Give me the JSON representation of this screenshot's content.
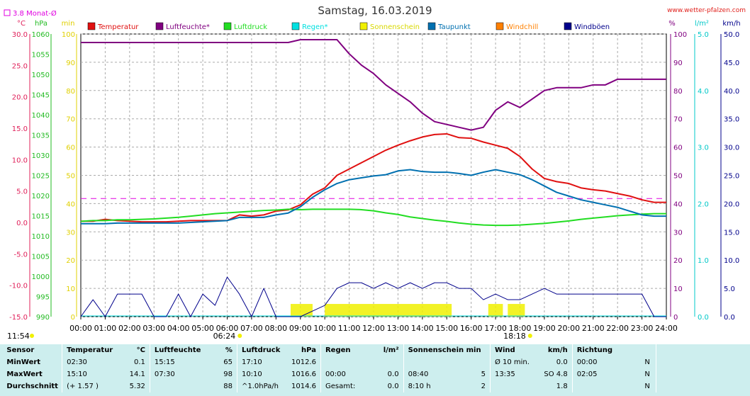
{
  "header": {
    "title": "Samstag, 16.03.2019",
    "site": "www.wetter-pfalzen.com"
  },
  "chart_data": {
    "type": "line",
    "x_hours": [
      0,
      0.5,
      1,
      1.5,
      2,
      2.5,
      3,
      3.5,
      4,
      4.5,
      5,
      5.5,
      6,
      6.5,
      7,
      7.5,
      8,
      8.5,
      9,
      9.5,
      10,
      10.5,
      11,
      11.5,
      12,
      12.5,
      13,
      13.5,
      14,
      14.5,
      15,
      15.5,
      16,
      16.5,
      17,
      17.5,
      18,
      18.5,
      19,
      19.5,
      20,
      20.5,
      21,
      21.5,
      22,
      22.5,
      23,
      23.5,
      24
    ],
    "x_tick_labels": [
      "00:00",
      "01:00",
      "02:00",
      "03:00",
      "04:00",
      "05:00",
      "06:00",
      "07:00",
      "08:00",
      "09:00",
      "10:00",
      "11:00",
      "12:00",
      "13:00",
      "14:00",
      "15:00",
      "16:00",
      "17:00",
      "18:00",
      "19:00",
      "20:00",
      "21:00",
      "22:00",
      "23:00",
      "24:00"
    ],
    "legend": [
      {
        "name": "Temperatur",
        "color": "#e01010"
      },
      {
        "name": "Luftfeuchte*",
        "color": "#800080"
      },
      {
        "name": "Luftdruck",
        "color": "#22dd22"
      },
      {
        "name": "Regen*",
        "color": "#00e0e0"
      },
      {
        "name": "Sonnenschein",
        "color": "#f0f000"
      },
      {
        "name": "Taupunkt",
        "color": "#0070b0"
      },
      {
        "name": "Windchill",
        "color": "#ff8000"
      },
      {
        "name": "Windböen",
        "color": "#00008b"
      }
    ],
    "axes": {
      "temp": {
        "unit": "°C",
        "min": -15,
        "max": 30,
        "ticks": [
          "30.0",
          "25.0",
          "20.0",
          "15.0",
          "10.0",
          "5.0",
          "0.0",
          "-5.0",
          "-10.0",
          "-15.0"
        ],
        "color": "#e0205a"
      },
      "pressure": {
        "unit": "hPa",
        "min": 990,
        "max": 1060,
        "ticks": [
          "1060",
          "1055",
          "1050",
          "1045",
          "1040",
          "1035",
          "1030",
          "1025",
          "1020",
          "1015",
          "1010",
          "1005",
          "1000",
          "995",
          "990"
        ],
        "color": "#22bb22"
      },
      "sun_min": {
        "unit": "min",
        "min": 0,
        "max": 100,
        "ticks": [
          "100",
          "90",
          "80",
          "70",
          "60",
          "50",
          "40",
          "30",
          "20",
          "10",
          "0"
        ],
        "color": "#e0d000"
      },
      "humidity": {
        "unit": "%",
        "min": 0,
        "max": 100,
        "ticks": [
          "100",
          "90",
          "80",
          "70",
          "60",
          "50",
          "40",
          "30",
          "20",
          "10",
          "0"
        ],
        "color": "#800080"
      },
      "rain": {
        "unit": "l/m²",
        "min": 0,
        "max": 5,
        "ticks": [
          "5.0",
          "4.0",
          "3.0",
          "2.0",
          "1.0",
          "0.0"
        ],
        "color": "#00c8c8"
      },
      "wind": {
        "unit": "km/h",
        "min": 0,
        "max": 50,
        "ticks": [
          "50.0",
          "45.0",
          "40.0",
          "35.0",
          "30.0",
          "25.0",
          "20.0",
          "15.0",
          "10.0",
          "5.0",
          "0.0"
        ],
        "color": "#00008b"
      }
    },
    "monthly_avg": {
      "label": "3.8 Monat-Ø",
      "value": 3.8,
      "color": "#e000e0"
    },
    "sunrise": "06:24",
    "sunset": "18:18",
    "day_length": "11:54",
    "series": [
      {
        "name": "Temperatur",
        "axis": "temp",
        "color": "#e01010",
        "values": [
          0.2,
          0.2,
          0.5,
          0.3,
          0.2,
          0.1,
          0.1,
          0.1,
          0.2,
          0.3,
          0.3,
          0.3,
          0.3,
          1.2,
          1.0,
          1.2,
          1.8,
          2.0,
          2.8,
          4.5,
          5.5,
          7.5,
          8.5,
          9.5,
          10.5,
          11.5,
          12.3,
          13.0,
          13.6,
          14.0,
          14.1,
          13.5,
          13.4,
          12.8,
          12.3,
          11.8,
          10.5,
          8.5,
          7.0,
          6.5,
          6.2,
          5.5,
          5.2,
          5.0,
          4.6,
          4.2,
          3.6,
          3.2,
          3.2
        ]
      },
      {
        "name": "Luftfeuchte*",
        "axis": "humidity",
        "color": "#800080",
        "values": [
          97,
          97,
          97,
          97,
          97,
          97,
          97,
          97,
          97,
          97,
          97,
          97,
          97,
          97,
          97,
          97,
          97,
          97,
          98,
          98,
          98,
          98,
          93,
          89,
          86,
          82,
          79,
          76,
          72,
          69,
          68,
          67,
          66,
          67,
          73,
          76,
          74,
          77,
          80,
          81,
          81,
          81,
          82,
          82,
          84,
          84,
          84,
          84,
          84
        ]
      },
      {
        "name": "Luftdruck",
        "axis": "pressure",
        "color": "#22dd22",
        "values": [
          1013.6,
          1013.8,
          1013.8,
          1014.0,
          1014.0,
          1014.1,
          1014.2,
          1014.4,
          1014.6,
          1014.9,
          1015.2,
          1015.5,
          1015.7,
          1015.9,
          1016.1,
          1016.3,
          1016.4,
          1016.6,
          1016.5,
          1016.6,
          1016.6,
          1016.6,
          1016.6,
          1016.5,
          1016.2,
          1015.7,
          1015.3,
          1014.7,
          1014.3,
          1013.9,
          1013.6,
          1013.2,
          1012.9,
          1012.7,
          1012.6,
          1012.6,
          1012.7,
          1012.9,
          1013.1,
          1013.4,
          1013.7,
          1014.1,
          1014.4,
          1014.7,
          1015.0,
          1015.2,
          1015.4,
          1015.5,
          1015.5
        ]
      },
      {
        "name": "Taupunkt",
        "axis": "temp",
        "color": "#0070b0",
        "values": [
          -0.2,
          -0.2,
          -0.2,
          -0.1,
          -0.1,
          -0.1,
          -0.1,
          -0.1,
          -0.1,
          0.0,
          0.1,
          0.2,
          0.3,
          0.8,
          0.8,
          0.8,
          1.2,
          1.5,
          2.5,
          4.0,
          5.2,
          6.2,
          6.8,
          7.1,
          7.4,
          7.6,
          8.2,
          8.4,
          8.1,
          8.0,
          8.0,
          7.8,
          7.5,
          8.0,
          8.4,
          8.0,
          7.6,
          6.8,
          5.8,
          4.8,
          4.2,
          3.6,
          3.2,
          2.8,
          2.4,
          1.8,
          1.2,
          1.0,
          1.0
        ]
      },
      {
        "name": "Windböen",
        "axis": "wind",
        "color": "#00008b",
        "values": [
          0,
          3,
          0,
          4,
          4,
          4,
          0,
          0,
          4,
          0,
          4,
          2,
          7,
          4,
          0,
          5,
          0,
          0,
          0,
          1,
          2,
          5,
          6,
          6,
          5,
          6,
          5,
          6,
          5,
          6,
          6,
          5,
          5,
          3,
          4,
          3,
          3,
          4,
          5,
          4,
          4,
          4,
          4,
          4,
          4,
          4,
          4,
          0,
          0
        ]
      }
    ],
    "sunshine_blocks": [
      [
        8.6,
        9.5
      ],
      [
        10.0,
        15.2
      ],
      [
        16.7,
        17.3
      ],
      [
        17.5,
        18.2
      ]
    ]
  },
  "stats": {
    "headers": {
      "sensor": "Sensor",
      "temp": "Temperatur",
      "temp_unit": "°C",
      "hum": "Luftfeuchte",
      "hum_unit": "%",
      "press": "Luftdruck",
      "press_unit": "hPa",
      "rain": "Regen",
      "rain_unit": "l/m²",
      "sun": "Sonnenschein min",
      "wind": "Wind",
      "wind_unit": "km/h",
      "dir": "Richtung"
    },
    "rows": [
      {
        "label": "MinWert",
        "t_time": "02:30",
        "t_val": "0.1",
        "h_time": "15:15",
        "h_val": "65",
        "p_time": "17:10",
        "p_val": "1012.6",
        "r_time": "",
        "r_val": "",
        "s_time": "",
        "s_val": "",
        "w_time": "Ø 10 min.",
        "w_val": "0.0",
        "d_time": "00:00",
        "d_val": "N"
      },
      {
        "label": "MaxWert",
        "t_time": "15:10",
        "t_val": "14.1",
        "h_time": "07:30",
        "h_val": "98",
        "p_time": "10:10",
        "p_val": "1016.6",
        "r_time": "00:00",
        "r_val": "0.0",
        "s_time": "08:40",
        "s_val": "5",
        "w_time": "13:35",
        "w_val": "SO 4.8",
        "d_time": "02:05",
        "d_val": "N"
      },
      {
        "label": "Durchschnitt",
        "t_time": "(+ 1.57 )",
        "t_val": "5.32",
        "h_time": "",
        "h_val": "88",
        "p_time": "^1.0hPa/h",
        "p_val": "1014.6",
        "r_time": "Gesamt:",
        "r_val": "0.0",
        "s_time": "8:10 h",
        "s_val": "2",
        "w_time": "",
        "w_val": "1.8",
        "d_time": "",
        "d_val": "N"
      }
    ]
  }
}
